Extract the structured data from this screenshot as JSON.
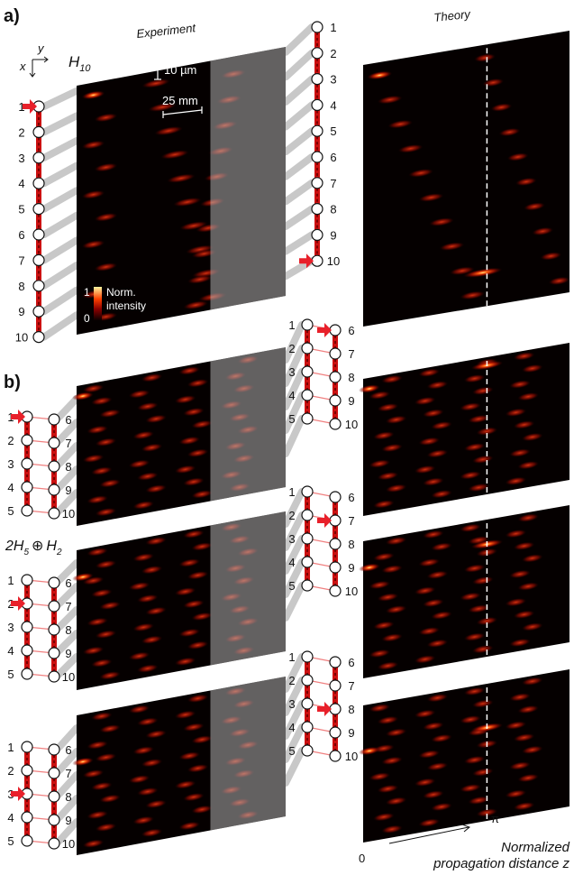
{
  "figure": {
    "panel_a_label": "a)",
    "panel_b_label": "b)",
    "experiment_title": "Experiment",
    "theory_title": "Theory",
    "hamiltonian_a": "H",
    "hamiltonian_a_sub": "10",
    "hamiltonian_b_pre": "2H",
    "hamiltonian_b_sub1": "5",
    "hamiltonian_b_op": "⊕",
    "hamiltonian_b_post": "H",
    "hamiltonian_b_sub2": "2",
    "axis_x": "x",
    "axis_y": "y",
    "scale_vertical": "10 µm",
    "scale_horizontal": "25 mm",
    "colorbar_max": "1",
    "colorbar_min": "0",
    "colorbar_label_line1": "Norm.",
    "colorbar_label_line2": "intensity",
    "axis_zero": "0",
    "axis_pi": "π",
    "axis_title_line1": "Normalized",
    "axis_title_line2": "propagation distance z"
  },
  "panel_a": {
    "chain_sites": [
      "1",
      "2",
      "3",
      "4",
      "5",
      "6",
      "7",
      "8",
      "9",
      "10"
    ],
    "input_site": "1",
    "output_site": "10"
  },
  "panel_b": {
    "ladder_left_sites": [
      "1",
      "2",
      "3",
      "4",
      "5"
    ],
    "ladder_right_sites": [
      "6",
      "7",
      "8",
      "9",
      "10"
    ],
    "rows": [
      {
        "input_site": "1",
        "output_site": "6"
      },
      {
        "input_site": "2",
        "output_site": "7"
      },
      {
        "input_site": "3",
        "output_site": "8"
      }
    ]
  },
  "colors": {
    "waveguide_red": "#cc1111",
    "waveguide_dark": "#7a0000",
    "arrow_red": "#e8202a",
    "beam_grey": "#c8c8c8",
    "rung_pink": "#f08080"
  }
}
